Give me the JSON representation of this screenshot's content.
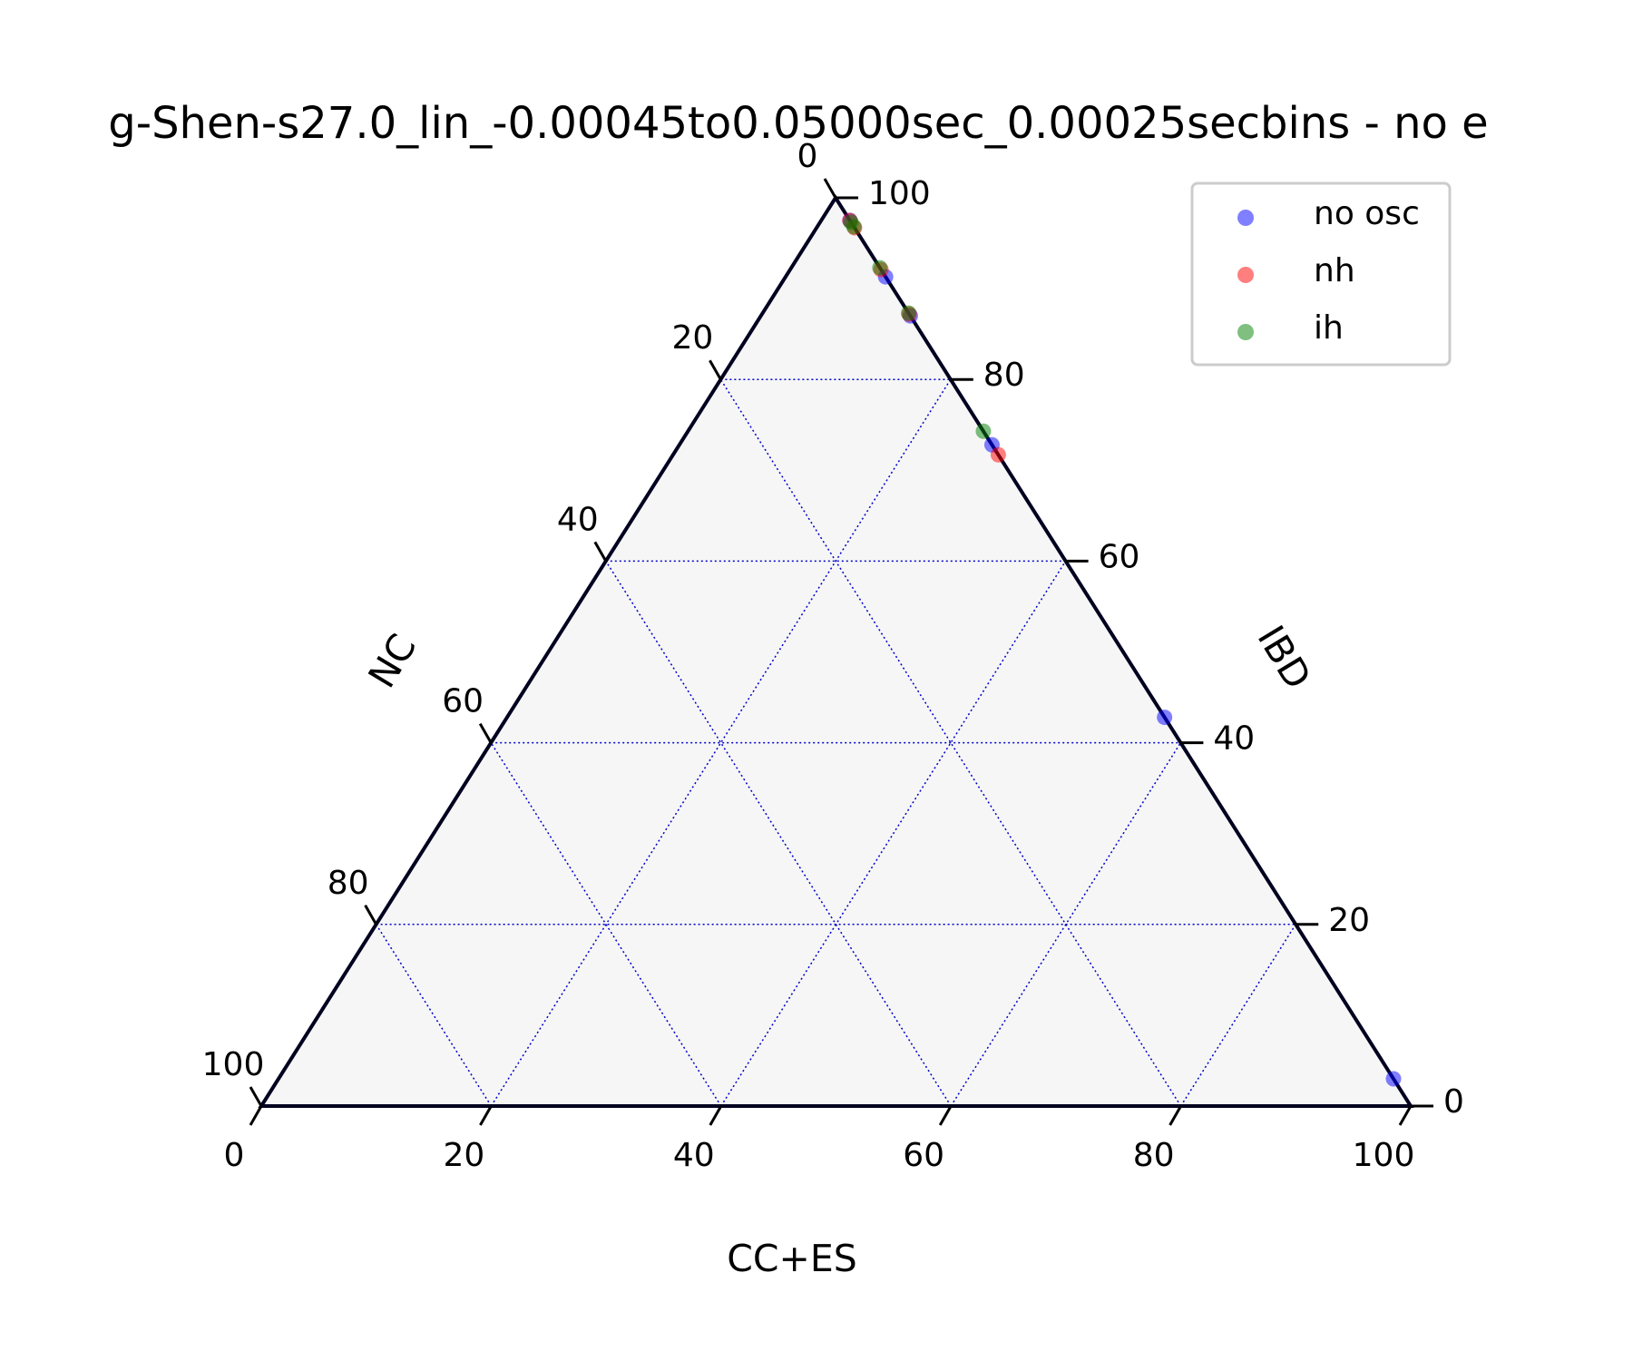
{
  "chart_data": {
    "type": "scatter",
    "subtype": "ternary",
    "title": "g-Shen-s27.0_lin_-0.00045to0.05000sec_0.00025secbins - no e",
    "axes": {
      "bottom": {
        "label": "CC+ES",
        "ticks": [
          0,
          20,
          40,
          60,
          80,
          100
        ]
      },
      "left": {
        "label": "NC",
        "ticks": [
          0,
          20,
          40,
          60,
          80,
          100
        ]
      },
      "right": {
        "label": "IBD",
        "ticks": [
          0,
          20,
          40,
          60,
          80,
          100
        ]
      }
    },
    "grid": true,
    "legend": {
      "location": "top-right"
    },
    "series": [
      {
        "name": "no osc",
        "color": "#0000ff",
        "points": [
          {
            "CC+ES": 2.5,
            "IBD": 97.5,
            "NC": 0
          },
          {
            "CC+ES": 8.7,
            "IBD": 91.3,
            "NC": 0
          },
          {
            "CC+ES": 13.0,
            "IBD": 87.0,
            "NC": 0
          },
          {
            "CC+ES": 27.2,
            "IBD": 72.8,
            "NC": 0
          },
          {
            "CC+ES": 57.2,
            "IBD": 42.8,
            "NC": 0
          },
          {
            "CC+ES": 97.0,
            "IBD": 3.0,
            "NC": 0
          }
        ]
      },
      {
        "name": "nh",
        "color": "#ff0000",
        "points": [
          {
            "CC+ES": 2.5,
            "IBD": 97.5,
            "NC": 0
          },
          {
            "CC+ES": 3.3,
            "IBD": 96.7,
            "NC": 0
          },
          {
            "CC+ES": 7.9,
            "IBD": 92.1,
            "NC": 0
          },
          {
            "CC+ES": 12.8,
            "IBD": 87.2,
            "NC": 0
          },
          {
            "CC+ES": 28.3,
            "IBD": 71.7,
            "NC": 0
          }
        ]
      },
      {
        "name": "ih",
        "color": "#008000",
        "points": [
          {
            "CC+ES": 2.7,
            "IBD": 97.3,
            "NC": 0
          },
          {
            "CC+ES": 3.2,
            "IBD": 96.8,
            "NC": 0
          },
          {
            "CC+ES": 7.7,
            "IBD": 92.3,
            "NC": 0
          },
          {
            "CC+ES": 12.7,
            "IBD": 87.3,
            "NC": 0
          },
          {
            "CC+ES": 25.7,
            "IBD": 74.3,
            "NC": 0
          }
        ]
      }
    ]
  }
}
